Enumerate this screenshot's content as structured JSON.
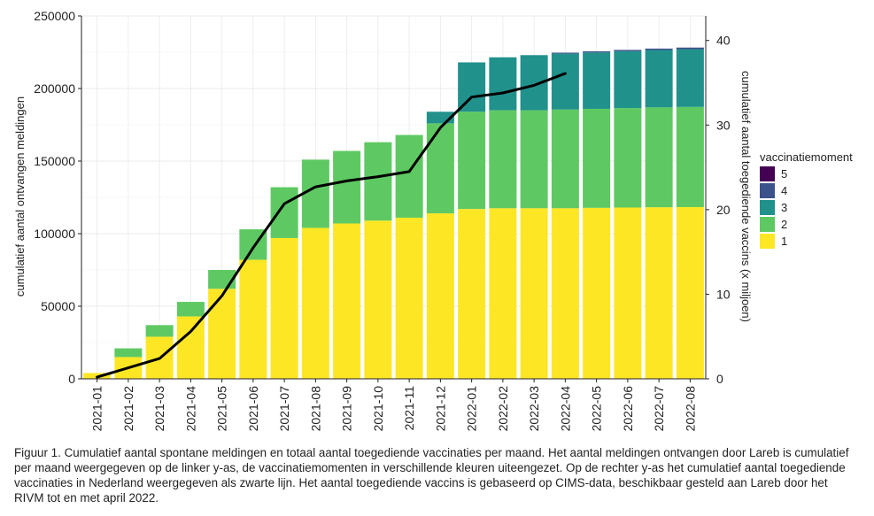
{
  "chart_data": {
    "type": "bar",
    "stacked": true,
    "categories": [
      "2021-01",
      "2021-02",
      "2021-03",
      "2021-04",
      "2021-05",
      "2021-06",
      "2021-07",
      "2021-08",
      "2021-09",
      "2021-10",
      "2021-11",
      "2021-12",
      "2022-01",
      "2022-02",
      "2022-03",
      "2022-04",
      "2022-05",
      "2022-06",
      "2022-07",
      "2022-08"
    ],
    "series": [
      {
        "name": "1",
        "color": "#fde725",
        "values": [
          4000,
          15000,
          29000,
          43000,
          62000,
          82000,
          97000,
          104000,
          107000,
          109000,
          111000,
          114000,
          117000,
          117500,
          117500,
          117500,
          117800,
          118000,
          118200,
          118300
        ]
      },
      {
        "name": "2",
        "color": "#5ec962",
        "values": [
          0,
          6000,
          8000,
          10000,
          13000,
          21000,
          35000,
          47000,
          50000,
          54000,
          57000,
          62000,
          67000,
          67500,
          67500,
          68000,
          68200,
          68500,
          68800,
          69000
        ]
      },
      {
        "name": "3",
        "color": "#21918c",
        "values": [
          0,
          0,
          0,
          0,
          0,
          0,
          0,
          0,
          0,
          0,
          0,
          8000,
          34000,
          36500,
          38000,
          38500,
          38800,
          39200,
          39500,
          39800
        ]
      },
      {
        "name": "4",
        "color": "#3b528b",
        "values": [
          0,
          0,
          0,
          0,
          0,
          0,
          0,
          0,
          0,
          0,
          0,
          0,
          0,
          0,
          0,
          700,
          800,
          900,
          1000,
          1000
        ]
      },
      {
        "name": "5",
        "color": "#440154",
        "values": [
          0,
          0,
          0,
          0,
          0,
          0,
          0,
          0,
          0,
          0,
          0,
          0,
          0,
          0,
          0,
          0,
          0,
          0,
          0,
          100
        ]
      }
    ],
    "line": {
      "name": "cumulatief aantal toegediende vaccins (x miljoen)",
      "color": "#000000",
      "axis": "right",
      "categories": [
        "2021-01",
        "2021-02",
        "2021-03",
        "2021-04",
        "2021-05",
        "2021-06",
        "2021-07",
        "2021-08",
        "2021-09",
        "2021-10",
        "2021-11",
        "2021-12",
        "2022-01",
        "2022-02",
        "2022-03",
        "2022-04"
      ],
      "values": [
        0.2,
        1.3,
        2.4,
        5.6,
        9.8,
        15.5,
        20.7,
        22.7,
        23.4,
        23.9,
        24.5,
        29.7,
        33.3,
        33.8,
        34.7,
        36.1
      ]
    },
    "ylabel_left": "cumulatief aantal ontvangen meldingen",
    "ylabel_right": "cumulatief aantal toegediende vaccins (x miljoen)",
    "ylim_left": [
      0,
      250000
    ],
    "ylim_right": [
      0,
      42.9
    ],
    "yticks_left": [
      "0",
      "50000",
      "100000",
      "150000",
      "200000",
      "250000"
    ],
    "yticks_left_values": [
      0,
      50000,
      100000,
      150000,
      200000,
      250000
    ],
    "yticks_right": [
      "0",
      "10",
      "20",
      "30",
      "40"
    ],
    "yticks_right_values": [
      0,
      10,
      20,
      30,
      40
    ],
    "grid": true,
    "legend": {
      "title": "vaccinatiemoment",
      "placement": "right",
      "entries": [
        {
          "label": "5",
          "color": "#440154"
        },
        {
          "label": "4",
          "color": "#3b528b"
        },
        {
          "label": "3",
          "color": "#21918c"
        },
        {
          "label": "2",
          "color": "#5ec962"
        },
        {
          "label": "1",
          "color": "#fde725"
        }
      ]
    }
  },
  "caption": "Figuur 1. Cumulatief aantal spontane meldingen en totaal aantal toegediende vaccinaties per maand. Het aantal meldingen ontvangen door Lareb is cumulatief per maand weergegeven op de linker y-as, de vaccinatiemomenten in verschillende kleuren uiteengezet. Op de rechter y-as het cumulatief aantal toegediende vaccinaties in Nederland weergegeven als zwarte lijn. Het aantal toegediende vaccins is gebaseerd op CIMS-data, beschikbaar gesteld aan Lareb door het RIVM tot en met april 2022."
}
